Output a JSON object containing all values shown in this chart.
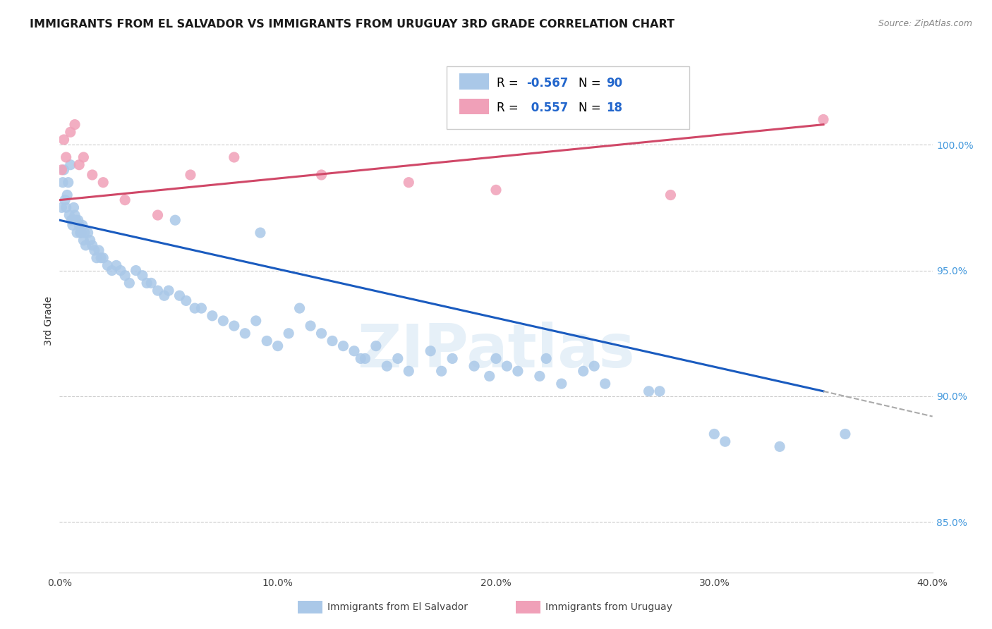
{
  "title": "IMMIGRANTS FROM EL SALVADOR VS IMMIGRANTS FROM URUGUAY 3RD GRADE CORRELATION CHART",
  "source": "Source: ZipAtlas.com",
  "ylabel": "3rd Grade",
  "blue_color": "#aac8e8",
  "blue_line_color": "#1a5bbf",
  "pink_color": "#f0a0b8",
  "pink_line_color": "#d04868",
  "watermark_text": "ZIPatlas",
  "R_blue": -0.567,
  "N_blue": 90,
  "R_pink": 0.557,
  "N_pink": 18,
  "el_salvador_x": [
    0.1,
    0.15,
    0.2,
    0.25,
    0.3,
    0.35,
    0.4,
    0.45,
    0.5,
    0.55,
    0.6,
    0.65,
    0.7,
    0.75,
    0.8,
    0.85,
    0.9,
    0.95,
    1.0,
    1.05,
    1.1,
    1.15,
    1.2,
    1.3,
    1.4,
    1.5,
    1.6,
    1.7,
    1.8,
    1.9,
    2.0,
    2.2,
    2.4,
    2.6,
    2.8,
    3.0,
    3.2,
    3.5,
    3.8,
    4.0,
    4.2,
    4.5,
    4.8,
    5.0,
    5.5,
    5.8,
    6.2,
    6.5,
    7.0,
    7.5,
    8.0,
    8.5,
    9.0,
    9.5,
    10.0,
    10.5,
    11.0,
    11.5,
    12.0,
    12.5,
    13.0,
    13.5,
    14.0,
    14.5,
    15.0,
    15.5,
    16.0,
    17.0,
    18.0,
    19.0,
    20.0,
    21.0,
    22.0,
    23.0,
    24.0,
    25.0,
    27.0,
    30.0,
    33.0,
    36.0,
    5.3,
    9.2,
    13.8,
    19.7,
    22.3,
    27.5,
    30.5,
    17.5,
    20.5,
    24.5
  ],
  "el_salvador_y": [
    97.5,
    98.5,
    99.0,
    97.8,
    97.5,
    98.0,
    98.5,
    97.2,
    99.2,
    97.0,
    96.8,
    97.5,
    97.2,
    97.0,
    96.5,
    97.0,
    96.8,
    96.5,
    96.5,
    96.8,
    96.2,
    96.5,
    96.0,
    96.5,
    96.2,
    96.0,
    95.8,
    95.5,
    95.8,
    95.5,
    95.5,
    95.2,
    95.0,
    95.2,
    95.0,
    94.8,
    94.5,
    95.0,
    94.8,
    94.5,
    94.5,
    94.2,
    94.0,
    94.2,
    94.0,
    93.8,
    93.5,
    93.5,
    93.2,
    93.0,
    92.8,
    92.5,
    93.0,
    92.2,
    92.0,
    92.5,
    93.5,
    92.8,
    92.5,
    92.2,
    92.0,
    91.8,
    91.5,
    92.0,
    91.2,
    91.5,
    91.0,
    91.8,
    91.5,
    91.2,
    91.5,
    91.0,
    90.8,
    90.5,
    91.0,
    90.5,
    90.2,
    88.5,
    88.0,
    88.5,
    97.0,
    96.5,
    91.5,
    90.8,
    91.5,
    90.2,
    88.2,
    91.0,
    91.2,
    91.2
  ],
  "uruguay_x": [
    0.1,
    0.2,
    0.3,
    0.5,
    0.7,
    0.9,
    1.1,
    1.5,
    2.0,
    3.0,
    4.5,
    6.0,
    8.0,
    12.0,
    16.0,
    20.0,
    28.0,
    35.0
  ],
  "uruguay_y": [
    99.0,
    100.2,
    99.5,
    100.5,
    100.8,
    99.2,
    99.5,
    98.8,
    98.5,
    97.8,
    97.2,
    98.8,
    99.5,
    98.8,
    98.5,
    98.2,
    98.0,
    101.0
  ],
  "blue_line_x0": 0.0,
  "blue_line_y0": 97.0,
  "blue_line_x1": 35.0,
  "blue_line_y1": 90.2,
  "blue_dash_x0": 35.0,
  "blue_dash_y0": 90.2,
  "blue_dash_x1": 40.0,
  "blue_dash_y1": 89.2,
  "pink_line_x0": 0.0,
  "pink_line_y0": 97.8,
  "pink_line_x1": 35.0,
  "pink_line_y1": 100.8,
  "xlim": [
    0.0,
    40.0
  ],
  "ylim": [
    83.0,
    103.0
  ],
  "right_y_ticks": [
    85.0,
    90.0,
    95.0,
    100.0
  ],
  "right_y_tick_labels": [
    "85.0%",
    "90.0%",
    "95.0%",
    "100.0%"
  ],
  "x_ticks": [
    0.0,
    10.0,
    20.0,
    30.0,
    40.0
  ],
  "x_tick_labels": [
    "0.0%",
    "10.0%",
    "20.0%",
    "30.0%",
    "40.0%"
  ]
}
